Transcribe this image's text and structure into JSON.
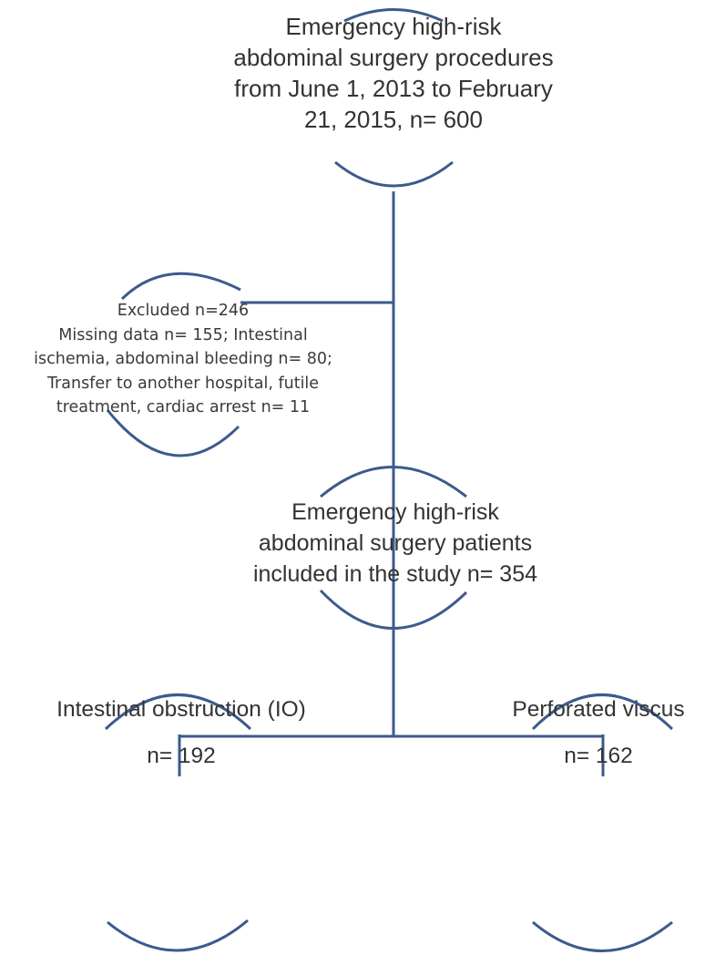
{
  "diagram": {
    "colors": {
      "line": "#3d5a8c",
      "text": "#333333"
    },
    "nodes": {
      "top": {
        "lines": [
          "Emergency high-risk",
          "abdominal surgery procedures",
          "from June 1, 2013 to February",
          "21, 2015, n= 600"
        ]
      },
      "excluded": {
        "lines": [
          "Excluded n=246",
          "Missing data n= 155; Intestinal",
          "ischemia, abdominal bleeding n= 80;",
          "Transfer to another hospital, futile",
          "treatment, cardiac arrest n= 11"
        ]
      },
      "included": {
        "lines": [
          "Emergency high-risk",
          "abdominal surgery patients",
          "included in the study n= 354"
        ]
      },
      "intestinal_obstruction": {
        "label": "Intestinal obstruction (IO)",
        "count": "n= 192"
      },
      "perforated_viscus": {
        "label": "Perforated viscus",
        "count": "n= 162"
      }
    }
  }
}
